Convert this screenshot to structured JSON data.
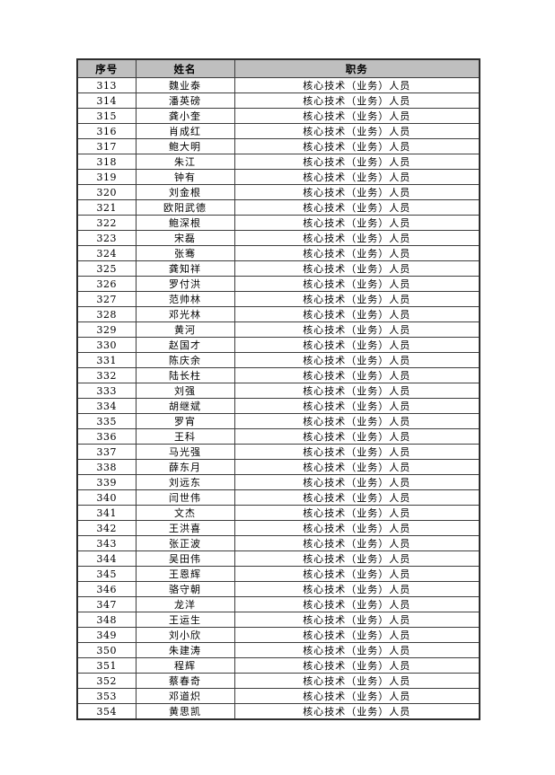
{
  "table": {
    "header_bg": "#bfbfbf",
    "border_color": "#3d3d3d",
    "headers": [
      "序号",
      "姓名",
      "职务"
    ],
    "rows": [
      {
        "no": "313",
        "name": "魏业泰",
        "position": "核心技术（业务）人员"
      },
      {
        "no": "314",
        "name": "潘英磅",
        "position": "核心技术（业务）人员"
      },
      {
        "no": "315",
        "name": "龚小奎",
        "position": "核心技术（业务）人员"
      },
      {
        "no": "316",
        "name": "肖成红",
        "position": "核心技术（业务）人员"
      },
      {
        "no": "317",
        "name": "鲍大明",
        "position": "核心技术（业务）人员"
      },
      {
        "no": "318",
        "name": "朱江",
        "position": "核心技术（业务）人员"
      },
      {
        "no": "319",
        "name": "钟有",
        "position": "核心技术（业务）人员"
      },
      {
        "no": "320",
        "name": "刘金根",
        "position": "核心技术（业务）人员"
      },
      {
        "no": "321",
        "name": "欧阳武德",
        "position": "核心技术（业务）人员"
      },
      {
        "no": "322",
        "name": "鲍深根",
        "position": "核心技术（业务）人员"
      },
      {
        "no": "323",
        "name": "宋磊",
        "position": "核心技术（业务）人员"
      },
      {
        "no": "324",
        "name": "张骞",
        "position": "核心技术（业务）人员"
      },
      {
        "no": "325",
        "name": "龚知祥",
        "position": "核心技术（业务）人员"
      },
      {
        "no": "326",
        "name": "罗付洪",
        "position": "核心技术（业务）人员"
      },
      {
        "no": "327",
        "name": "范帅林",
        "position": "核心技术（业务）人员"
      },
      {
        "no": "328",
        "name": "邓光林",
        "position": "核心技术（业务）人员"
      },
      {
        "no": "329",
        "name": "黄河",
        "position": "核心技术（业务）人员"
      },
      {
        "no": "330",
        "name": "赵国才",
        "position": "核心技术（业务）人员"
      },
      {
        "no": "331",
        "name": "陈庆余",
        "position": "核心技术（业务）人员"
      },
      {
        "no": "332",
        "name": "陆长柱",
        "position": "核心技术（业务）人员"
      },
      {
        "no": "333",
        "name": "刘强",
        "position": "核心技术（业务）人员"
      },
      {
        "no": "334",
        "name": "胡继斌",
        "position": "核心技术（业务）人员"
      },
      {
        "no": "335",
        "name": "罗宵",
        "position": "核心技术（业务）人员"
      },
      {
        "no": "336",
        "name": "王科",
        "position": "核心技术（业务）人员"
      },
      {
        "no": "337",
        "name": "马光强",
        "position": "核心技术（业务）人员"
      },
      {
        "no": "338",
        "name": "薛东月",
        "position": "核心技术（业务）人员"
      },
      {
        "no": "339",
        "name": "刘远东",
        "position": "核心技术（业务）人员"
      },
      {
        "no": "340",
        "name": "闫世伟",
        "position": "核心技术（业务）人员"
      },
      {
        "no": "341",
        "name": "文杰",
        "position": "核心技术（业务）人员"
      },
      {
        "no": "342",
        "name": "王洪喜",
        "position": "核心技术（业务）人员"
      },
      {
        "no": "343",
        "name": "张正波",
        "position": "核心技术（业务）人员"
      },
      {
        "no": "344",
        "name": "吴田伟",
        "position": "核心技术（业务）人员"
      },
      {
        "no": "345",
        "name": "王恩辉",
        "position": "核心技术（业务）人员"
      },
      {
        "no": "346",
        "name": "骆守朝",
        "position": "核心技术（业务）人员"
      },
      {
        "no": "347",
        "name": "龙洋",
        "position": "核心技术（业务）人员"
      },
      {
        "no": "348",
        "name": "王运生",
        "position": "核心技术（业务）人员"
      },
      {
        "no": "349",
        "name": "刘小欣",
        "position": "核心技术（业务）人员"
      },
      {
        "no": "350",
        "name": "朱建涛",
        "position": "核心技术（业务）人员"
      },
      {
        "no": "351",
        "name": "程辉",
        "position": "核心技术（业务）人员"
      },
      {
        "no": "352",
        "name": "蔡春奇",
        "position": "核心技术（业务）人员"
      },
      {
        "no": "353",
        "name": "邓道炽",
        "position": "核心技术（业务）人员"
      },
      {
        "no": "354",
        "name": "黄思凯",
        "position": "核心技术（业务）人员"
      }
    ]
  }
}
